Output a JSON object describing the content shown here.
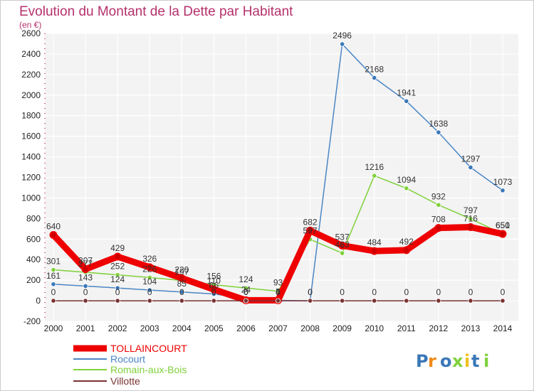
{
  "chart_data": {
    "type": "line",
    "title": "Evolution du Montant de la Dette par Habitant",
    "subtitle": "(en €)",
    "xlabel": "",
    "ylabel": "",
    "x": [
      "2000",
      "2001",
      "2002",
      "2003",
      "2004",
      "2005",
      "2006",
      "2007",
      "2008",
      "2009",
      "2010",
      "2011",
      "2012",
      "2013",
      "2014"
    ],
    "ylim": [
      -200,
      2600
    ],
    "yticks": [
      -200,
      0,
      200,
      400,
      600,
      800,
      1000,
      1200,
      1400,
      1600,
      1800,
      2000,
      2200,
      2400,
      2600
    ],
    "grid": true,
    "legend_position": "bottom-left",
    "series": [
      {
        "name": "TOLLAINCOURT",
        "color": "#ee0000",
        "values": [
          640,
          307,
          429,
          326,
          220,
          110,
          5,
          5,
          682,
          537,
          484,
          492,
          708,
          716,
          650
        ]
      },
      {
        "name": "Rocourt",
        "color": "#4a86c5",
        "values": [
          161,
          143,
          124,
          104,
          85,
          66,
          24,
          4,
          0,
          2496,
          2168,
          1941,
          1638,
          1297,
          1073
        ]
      },
      {
        "name": "Romain-aux-Bois",
        "color": "#7fd13b",
        "values": [
          301,
          277,
          252,
          226,
          197,
          156,
          124,
          93,
          597,
          463,
          1216,
          1094,
          932,
          797,
          651
        ]
      },
      {
        "name": "Villotte",
        "color": "#7a3232",
        "values": [
          0,
          0,
          0,
          0,
          0,
          0,
          0,
          0,
          0,
          0,
          0,
          0,
          0,
          0,
          0
        ]
      }
    ]
  },
  "logo": {
    "text": "Proxiti"
  }
}
